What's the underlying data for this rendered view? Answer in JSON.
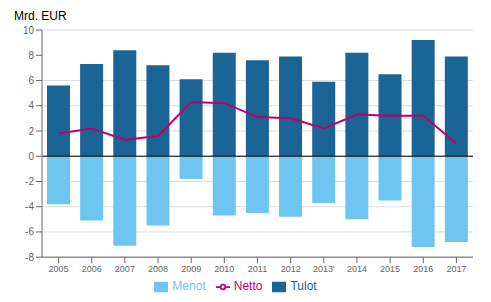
{
  "chart_data": {
    "type": "bar",
    "y_label": "Mrd. EUR",
    "categories": [
      "2005",
      "2006",
      "2007",
      "2008",
      "2009",
      "2010",
      "2011",
      "2012",
      "2013'",
      "2014",
      "2015",
      "2016",
      "2017"
    ],
    "series": [
      {
        "name": "Tulot",
        "type": "bar",
        "color": "#1A6496",
        "values": [
          5.6,
          7.3,
          8.4,
          7.2,
          6.1,
          8.2,
          7.6,
          7.9,
          5.9,
          8.2,
          6.5,
          9.2,
          7.9
        ]
      },
      {
        "name": "Menot",
        "type": "bar",
        "color": "#6EC6F0",
        "values": [
          -3.8,
          -5.1,
          -7.1,
          -5.5,
          -1.8,
          -4.7,
          -4.5,
          -4.8,
          -3.7,
          -5.0,
          -3.5,
          -7.2,
          -6.8
        ]
      },
      {
        "name": "Netto",
        "type": "line",
        "color": "#C0006E",
        "values": [
          1.8,
          2.2,
          1.3,
          1.6,
          4.3,
          4.2,
          3.1,
          3.0,
          2.2,
          3.3,
          3.2,
          3.2,
          1.0
        ]
      }
    ],
    "stacked": true,
    "ylim": [
      -8,
      10
    ],
    "yticks": [
      -8,
      -6,
      -4,
      -2,
      0,
      2,
      4,
      6,
      8,
      10
    ],
    "grid": true,
    "legend": "bottom"
  }
}
